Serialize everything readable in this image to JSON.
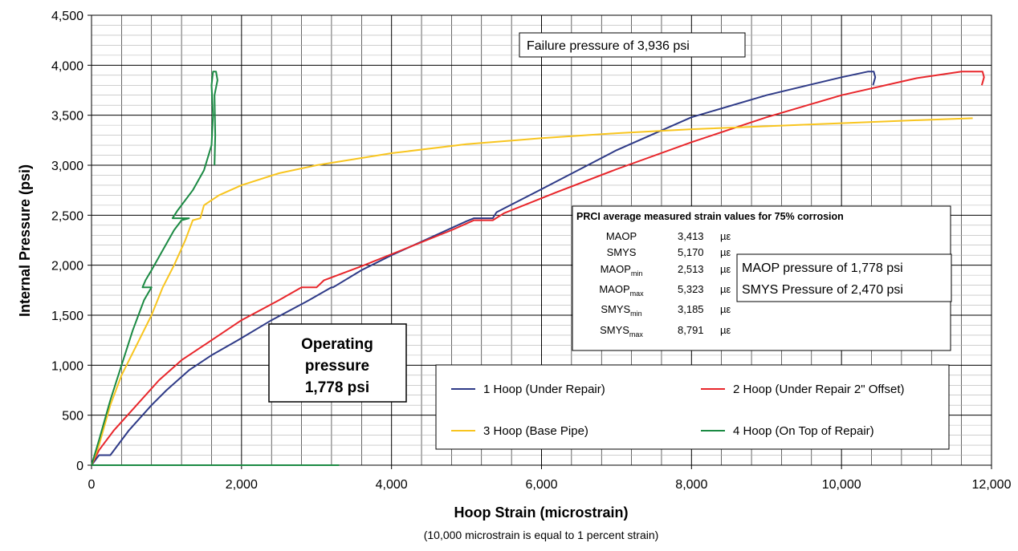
{
  "chart_data": {
    "type": "line",
    "xlabel": "Hoop Strain (microstrain)",
    "xlabel_note": "(10,000 microstrain is equal to 1 percent strain)",
    "ylabel": "Internal Pressure (psi)",
    "xlim": [
      0,
      12000
    ],
    "ylim": [
      0,
      4500
    ],
    "grid": true,
    "x_ticks": [
      0,
      2000,
      4000,
      6000,
      8000,
      10000,
      12000
    ],
    "x_tick_labels": [
      "0",
      "2,000",
      "4,000",
      "6,000",
      "8,000",
      "10,000",
      "12,000"
    ],
    "y_ticks": [
      0,
      500,
      1000,
      1500,
      2000,
      2500,
      3000,
      3500,
      4000,
      4500
    ],
    "y_tick_labels": [
      "0",
      "500",
      "1,000",
      "1,500",
      "2,000",
      "2,500",
      "3,000",
      "3,500",
      "4,000",
      "4,500"
    ],
    "legend_placement": "bottom-right",
    "series": [
      {
        "name": "1 Hoop (Under Repair)",
        "color": "#2e3a87",
        "points": [
          [
            0,
            0
          ],
          [
            100,
            100
          ],
          [
            250,
            100
          ],
          [
            500,
            350
          ],
          [
            800,
            600
          ],
          [
            1000,
            750
          ],
          [
            1300,
            950
          ],
          [
            1600,
            1100
          ],
          [
            1950,
            1250
          ],
          [
            2400,
            1450
          ],
          [
            2900,
            1650
          ],
          [
            3200,
            1778
          ],
          [
            3220,
            1778
          ],
          [
            3600,
            1950
          ],
          [
            4000,
            2100
          ],
          [
            4500,
            2270
          ],
          [
            5000,
            2440
          ],
          [
            5100,
            2470
          ],
          [
            5350,
            2470
          ],
          [
            5400,
            2530
          ],
          [
            6000,
            2760
          ],
          [
            7000,
            3150
          ],
          [
            8000,
            3480
          ],
          [
            9000,
            3700
          ],
          [
            10000,
            3880
          ],
          [
            10350,
            3936
          ],
          [
            10430,
            3936
          ],
          [
            10450,
            3880
          ],
          [
            10420,
            3800
          ]
        ]
      },
      {
        "name": "2 Hoop (Under Repair 2\" Offset)",
        "color": "#e8262b",
        "points": [
          [
            0,
            0
          ],
          [
            100,
            150
          ],
          [
            300,
            350
          ],
          [
            600,
            600
          ],
          [
            900,
            850
          ],
          [
            1200,
            1050
          ],
          [
            1600,
            1250
          ],
          [
            2000,
            1450
          ],
          [
            2500,
            1650
          ],
          [
            2800,
            1778
          ],
          [
            3000,
            1778
          ],
          [
            3100,
            1850
          ],
          [
            3600,
            1990
          ],
          [
            4200,
            2170
          ],
          [
            4800,
            2350
          ],
          [
            5100,
            2450
          ],
          [
            5350,
            2450
          ],
          [
            5500,
            2520
          ],
          [
            6200,
            2730
          ],
          [
            7000,
            2960
          ],
          [
            8000,
            3230
          ],
          [
            9000,
            3480
          ],
          [
            10000,
            3700
          ],
          [
            11000,
            3870
          ],
          [
            11600,
            3936
          ],
          [
            11880,
            3936
          ],
          [
            11900,
            3880
          ],
          [
            11870,
            3800
          ]
        ]
      },
      {
        "name": "3 Hoop (Base Pipe)",
        "color": "#f8c51f",
        "points": [
          [
            0,
            0
          ],
          [
            100,
            200
          ],
          [
            250,
            600
          ],
          [
            400,
            900
          ],
          [
            600,
            1200
          ],
          [
            800,
            1500
          ],
          [
            950,
            1778
          ],
          [
            1100,
            2000
          ],
          [
            1250,
            2250
          ],
          [
            1350,
            2450
          ],
          [
            1450,
            2470
          ],
          [
            1500,
            2600
          ],
          [
            1700,
            2700
          ],
          [
            2000,
            2800
          ],
          [
            2500,
            2920
          ],
          [
            3000,
            3000
          ],
          [
            4000,
            3120
          ],
          [
            5000,
            3210
          ],
          [
            6000,
            3270
          ],
          [
            7000,
            3320
          ],
          [
            8000,
            3360
          ],
          [
            9000,
            3390
          ],
          [
            10000,
            3420
          ],
          [
            11000,
            3450
          ],
          [
            11750,
            3470
          ]
        ]
      },
      {
        "name": "4 Hoop (On Top of Repair)",
        "color": "#1b8a43",
        "points": [
          [
            0,
            0
          ],
          [
            100,
            250
          ],
          [
            250,
            650
          ],
          [
            400,
            1000
          ],
          [
            550,
            1350
          ],
          [
            700,
            1650
          ],
          [
            800,
            1778
          ],
          [
            750,
            1778
          ],
          [
            680,
            1778
          ],
          [
            720,
            1850
          ],
          [
            800,
            1950
          ],
          [
            950,
            2150
          ],
          [
            1100,
            2350
          ],
          [
            1200,
            2450
          ],
          [
            1300,
            2470
          ],
          [
            1080,
            2470
          ],
          [
            1150,
            2550
          ],
          [
            1350,
            2750
          ],
          [
            1500,
            2950
          ],
          [
            1600,
            3200
          ],
          [
            1620,
            3500
          ],
          [
            1600,
            3800
          ],
          [
            1620,
            3936
          ],
          [
            1660,
            3936
          ],
          [
            1680,
            3850
          ],
          [
            1640,
            3700
          ],
          [
            1650,
            3300
          ],
          [
            1640,
            3000
          ]
        ]
      },
      {
        "name": "",
        "color": "#1b8a43",
        "points": [
          [
            0,
            0
          ],
          [
            3300,
            0
          ]
        ]
      }
    ],
    "annotations": {
      "failure": "Failure pressure of 3,936 psi",
      "operating": [
        "Operating",
        "pressure",
        "1,778 psi"
      ],
      "maop_smys": [
        "MAOP pressure of 1,778 psi",
        "SMYS Pressure of 2,470 psi"
      ]
    },
    "prci_table": {
      "title": "PRCI average measured strain values for 75% corrosion",
      "rows": [
        {
          "label": "MAOP",
          "sub": "",
          "value": "3,413",
          "unit": "µε"
        },
        {
          "label": "SMYS",
          "sub": "",
          "value": "5,170",
          "unit": "µε"
        },
        {
          "label": "MAOP",
          "sub": "min",
          "value": "2,513",
          "unit": "µε"
        },
        {
          "label": "MAOP",
          "sub": "max",
          "value": "5,323",
          "unit": "µε"
        },
        {
          "label": "SMYS",
          "sub": "min",
          "value": "3,185",
          "unit": "µε"
        },
        {
          "label": "SMYS",
          "sub": "max",
          "value": "8,791",
          "unit": "µε"
        }
      ]
    }
  }
}
